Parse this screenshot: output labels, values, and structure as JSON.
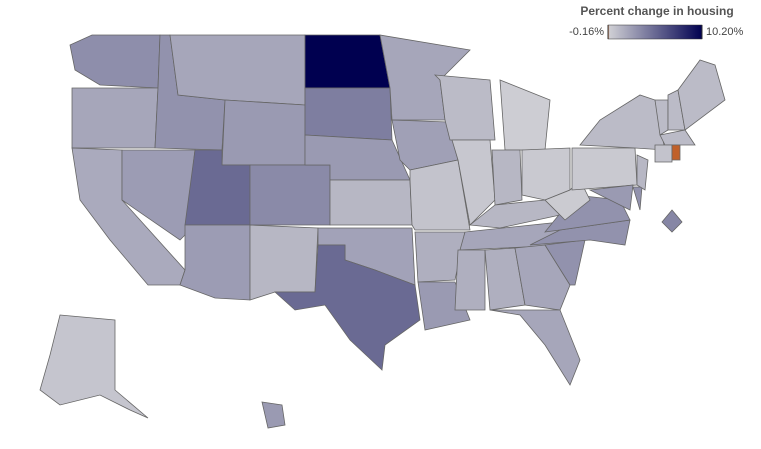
{
  "map_data": {
    "type": "choropleth",
    "legend_title": "Percent change in housing",
    "scale": [
      {
        "value": -0.16,
        "label": "-0.16%"
      },
      {
        "value": 10.2,
        "label": "10.20%"
      }
    ],
    "colors": [
      "#c0602a",
      "#cfcfd4",
      "#000050"
    ],
    "border_color": "#666666",
    "values": [
      3.2,
      2.0,
      1.8,
      2.5,
      3.0,
      2.0,
      2.6,
      5.0,
      3.4,
      2.5,
      1.2,
      10.2,
      4.0,
      2.6,
      1.2,
      2.2,
      5.0,
      2.0,
      2.3,
      0.6,
      1.6,
      2.6,
      1.0,
      0.4,
      0.1,
      1.2,
      0.3,
      1.2,
      2.0,
      1.6,
      1.6,
      2.0,
      2.0,
      3.0,
      3.0,
      3.0,
      0.2,
      0.3,
      1.0,
      2.6,
      3.0,
      1.2,
      1.0,
      1.0,
      1.0,
      1.0,
      0.6,
      -0.16,
      3.6,
      0.5,
      2.6
    ]
  }
}
